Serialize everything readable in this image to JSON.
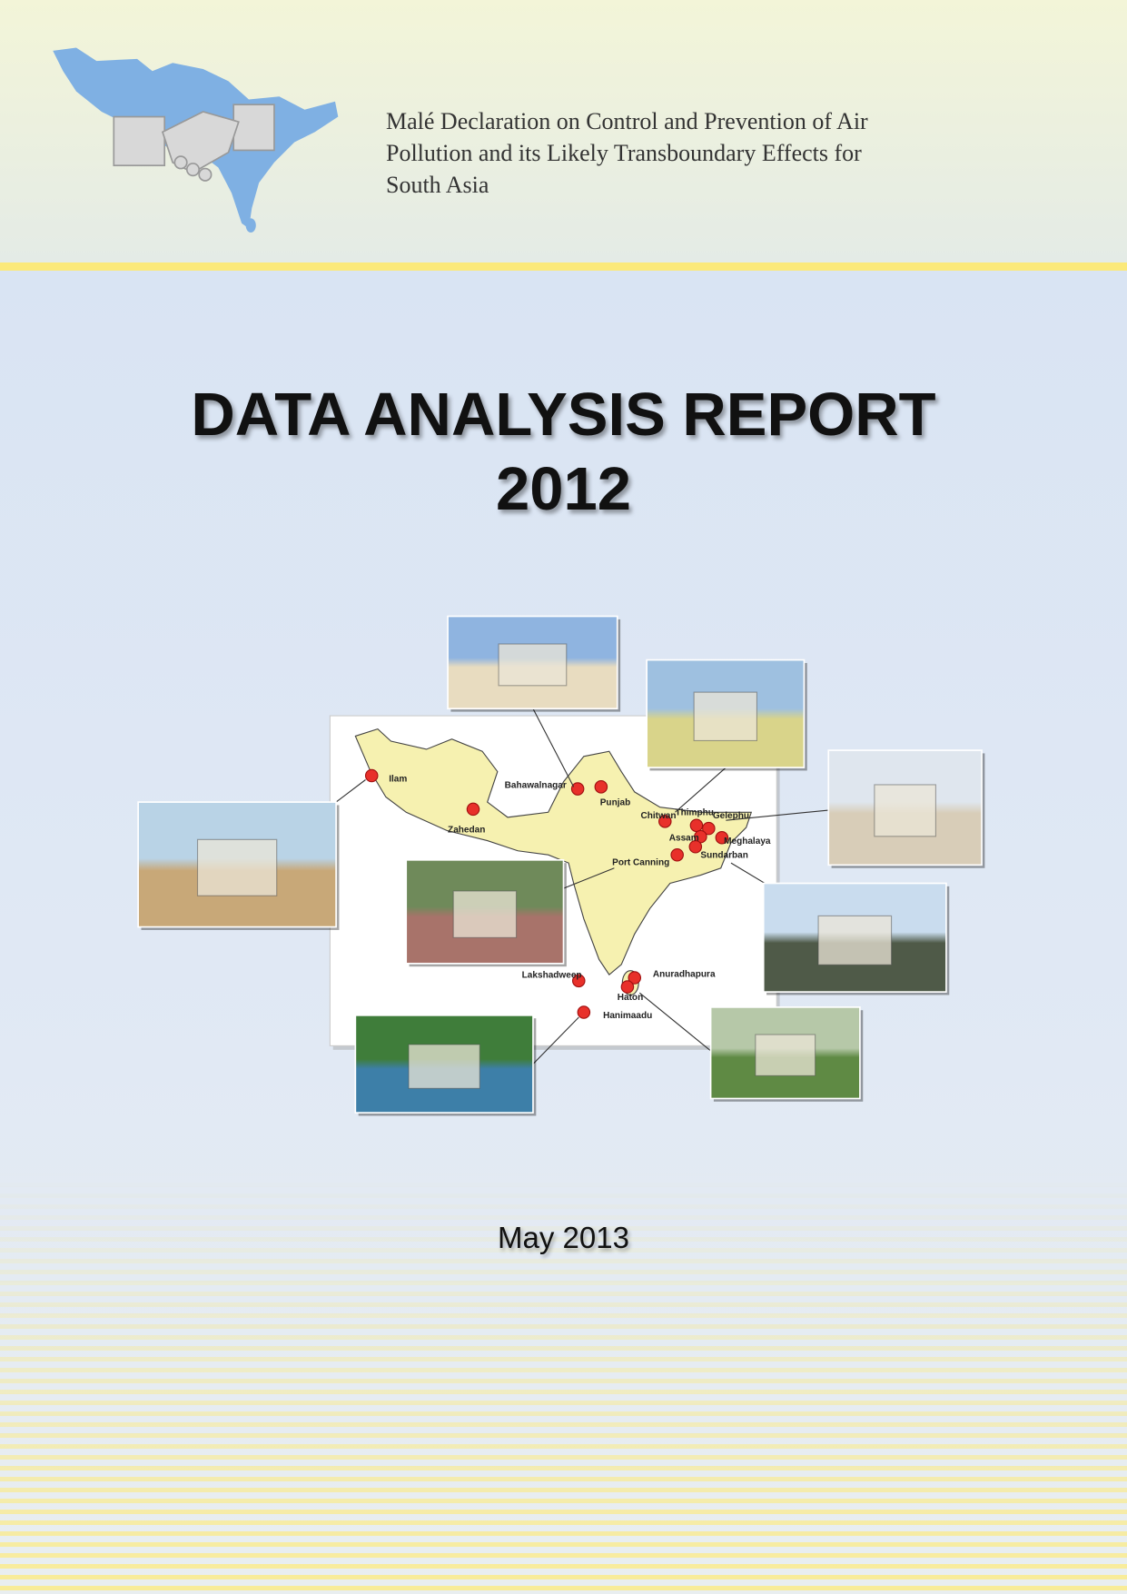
{
  "header": {
    "organization_lines": [
      "Malé Declaration on Control and Prevention of Air",
      "Pollution and its Likely Transboundary Effects for",
      "South Asia"
    ],
    "logo_icon": "south-asia-map-handshake-logo"
  },
  "title": {
    "line1": "DATA ANALYSIS REPORT",
    "line2": "2012"
  },
  "map": {
    "sites": [
      "Ilam",
      "Zahedan",
      "Bahawalnagar",
      "Punjab",
      "Chitwan",
      "Thimphu",
      "Gelephu",
      "Assam",
      "Meghalaya",
      "Sundarban",
      "Port Canning",
      "Lakshadweep",
      "Anuradhapura",
      "Haton",
      "Hanimaadu"
    ],
    "marker_color": "#e8302a",
    "land_color": "#f6f1b0"
  },
  "date": "May 2013",
  "colors": {
    "accent_rule": "#fbe97a",
    "logo_blue": "#7fb0e3"
  }
}
